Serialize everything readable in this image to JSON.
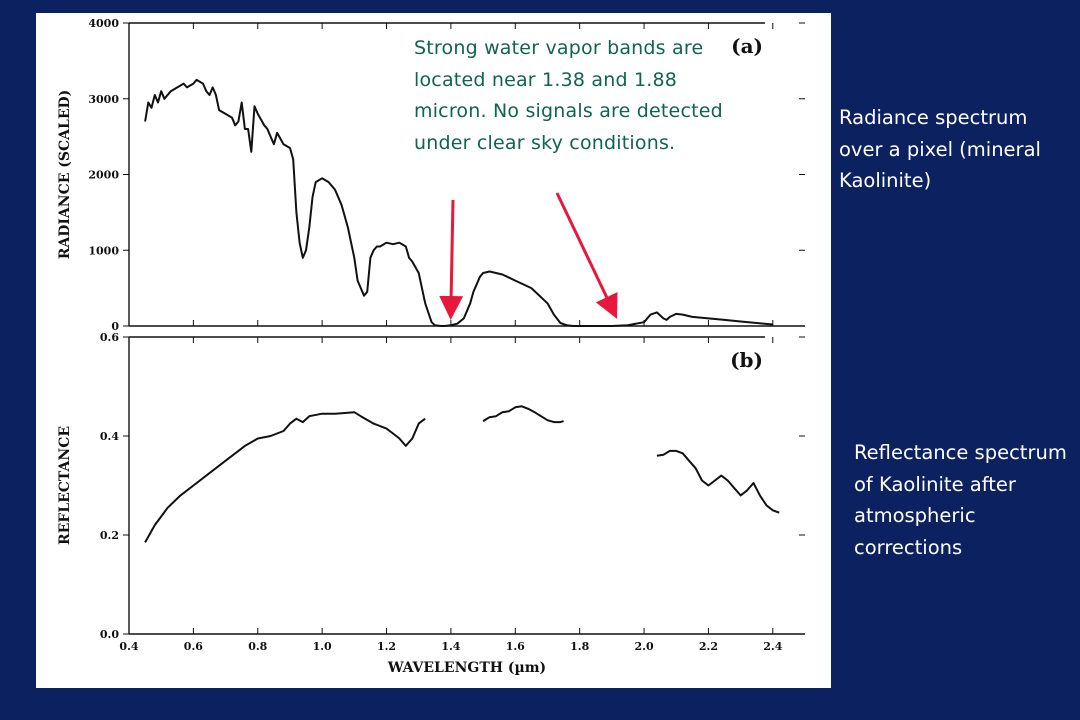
{
  "annotation": "Strong water vapor bands are located near 1.38 and 1.88 micron. No signals are detected under clear sky conditions.",
  "captions": {
    "radiance": "Radiance spectrum over a pixel (mineral Kaolinite)",
    "reflectance": "Reflectance spectrum of Kaolinite after atmospheric corrections"
  },
  "colors": {
    "background": "#0b2160",
    "annotation_text": "#0e6450",
    "arrow": "#e8183c",
    "caption_text": "#ffffff"
  },
  "arrows_point_to_um": [
    1.4,
    1.9
  ],
  "chart_data": [
    {
      "type": "line",
      "panel_label": "(a)",
      "xlabel": "",
      "ylabel": "RADIANCE (SCALED)",
      "xlim": [
        0.4,
        2.5
      ],
      "ylim": [
        0,
        4000
      ],
      "yticks": [
        "0",
        "1000",
        "2000",
        "3000",
        "4000"
      ],
      "series": [
        {
          "x": [
            0.45,
            0.46,
            0.47,
            0.48,
            0.49,
            0.5,
            0.51,
            0.52,
            0.53,
            0.55,
            0.57,
            0.58,
            0.6,
            0.61,
            0.63,
            0.64,
            0.65,
            0.66,
            0.67,
            0.68,
            0.7,
            0.72,
            0.73,
            0.74,
            0.75,
            0.76,
            0.77,
            0.78,
            0.79,
            0.8,
            0.82,
            0.83,
            0.84,
            0.85,
            0.86,
            0.88,
            0.9,
            0.91,
            0.92,
            0.93,
            0.94,
            0.95,
            0.96,
            0.97,
            0.98,
            1.0,
            1.02,
            1.04,
            1.06,
            1.08,
            1.1,
            1.11,
            1.12,
            1.13,
            1.14,
            1.15,
            1.16,
            1.17,
            1.18,
            1.2,
            1.22,
            1.24,
            1.26,
            1.27,
            1.28,
            1.3,
            1.32,
            1.34,
            1.35,
            1.36,
            1.37,
            1.38,
            1.4,
            1.42,
            1.44,
            1.46,
            1.47,
            1.48,
            1.49,
            1.5,
            1.52,
            1.54,
            1.56,
            1.6,
            1.65,
            1.7,
            1.72,
            1.74,
            1.76,
            1.77,
            1.78,
            1.8,
            1.85,
            1.9,
            1.95,
            2.0,
            2.02,
            2.04,
            2.06,
            2.07,
            2.08,
            2.1,
            2.12,
            2.15,
            2.2,
            2.25,
            2.3,
            2.35,
            2.4
          ],
          "y": [
            2700,
            2950,
            2880,
            3050,
            2950,
            3100,
            3000,
            3050,
            3100,
            3150,
            3200,
            3150,
            3200,
            3250,
            3200,
            3100,
            3050,
            3150,
            3050,
            2850,
            2800,
            2750,
            2650,
            2700,
            2950,
            2600,
            2600,
            2300,
            2900,
            2800,
            2650,
            2600,
            2500,
            2400,
            2550,
            2400,
            2350,
            2200,
            1500,
            1100,
            900,
            1000,
            1300,
            1700,
            1900,
            1950,
            1900,
            1800,
            1600,
            1300,
            900,
            600,
            500,
            400,
            450,
            900,
            1000,
            1050,
            1050,
            1100,
            1080,
            1100,
            1050,
            900,
            850,
            700,
            300,
            50,
            10,
            5,
            0,
            0,
            10,
            30,
            100,
            300,
            450,
            550,
            650,
            700,
            720,
            700,
            680,
            600,
            500,
            300,
            150,
            40,
            10,
            5,
            0,
            0,
            0,
            0,
            10,
            50,
            150,
            180,
            100,
            80,
            120,
            160,
            150,
            120,
            100,
            80,
            60,
            40,
            20
          ]
        }
      ]
    },
    {
      "type": "line",
      "panel_label": "(b)",
      "xlabel": "WAVELENGTH (µm)",
      "ylabel": "REFLECTANCE",
      "xlim": [
        0.4,
        2.5
      ],
      "ylim": [
        0.0,
        0.6
      ],
      "xticks": [
        "0.4",
        "0.6",
        "0.8",
        "1.0",
        "1.2",
        "1.4",
        "1.6",
        "1.8",
        "2.0",
        "2.2",
        "2.4"
      ],
      "yticks": [
        "0.0",
        "0.2",
        "0.4",
        "0.6"
      ],
      "series": [
        {
          "segments": [
            {
              "x": [
                0.45,
                0.48,
                0.52,
                0.56,
                0.6,
                0.64,
                0.68,
                0.72,
                0.76,
                0.8,
                0.84,
                0.88,
                0.9,
                0.92,
                0.94,
                0.96,
                1.0,
                1.04,
                1.08,
                1.1,
                1.12,
                1.16,
                1.2,
                1.22,
                1.24,
                1.26,
                1.28,
                1.3,
                1.31,
                1.32
              ],
              "y": [
                0.185,
                0.22,
                0.255,
                0.28,
                0.3,
                0.32,
                0.34,
                0.36,
                0.38,
                0.395,
                0.4,
                0.41,
                0.425,
                0.435,
                0.428,
                0.44,
                0.445,
                0.445,
                0.447,
                0.448,
                0.44,
                0.425,
                0.415,
                0.405,
                0.395,
                0.38,
                0.395,
                0.425,
                0.43,
                0.435
              ]
            },
            {
              "x": [
                1.5,
                1.52,
                1.54,
                1.56,
                1.58,
                1.6,
                1.62,
                1.64,
                1.66,
                1.68,
                1.7,
                1.72,
                1.74,
                1.75
              ],
              "y": [
                0.43,
                0.438,
                0.44,
                0.448,
                0.45,
                0.458,
                0.46,
                0.455,
                0.448,
                0.44,
                0.432,
                0.428,
                0.428,
                0.43
              ]
            },
            {
              "x": [
                2.04,
                2.06,
                2.08,
                2.1,
                2.12,
                2.14,
                2.16,
                2.18,
                2.2,
                2.22,
                2.24,
                2.26,
                2.28,
                2.3,
                2.32,
                2.34,
                2.36,
                2.38,
                2.4,
                2.42
              ],
              "y": [
                0.36,
                0.362,
                0.37,
                0.37,
                0.365,
                0.35,
                0.335,
                0.31,
                0.3,
                0.31,
                0.32,
                0.31,
                0.295,
                0.28,
                0.29,
                0.305,
                0.28,
                0.26,
                0.25,
                0.245
              ]
            }
          ]
        }
      ]
    }
  ]
}
